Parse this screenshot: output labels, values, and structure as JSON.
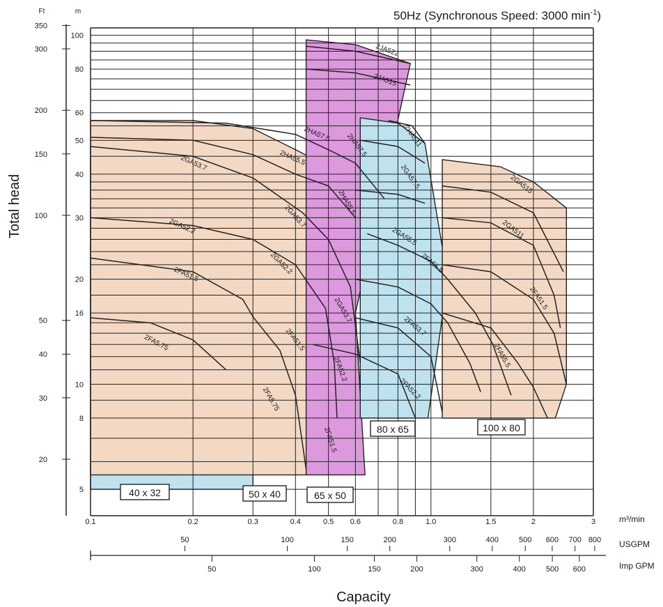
{
  "chart_data": {
    "type": "area",
    "title": "50Hz (Synchronous Speed: 3000 min",
    "title_sup": "-1",
    "title_end": ")",
    "ylabel": "Total head",
    "xlabel": "Capacity",
    "x_unit": "m³/min",
    "usgpm_label": "USGPM",
    "impgpm_label": "Imp GPM",
    "ft_label": "Ft",
    "m_label": "m",
    "x_scale": "log",
    "y_scale": "log",
    "xlim": [
      0.1,
      3
    ],
    "ylim_m": [
      4.2,
      105
    ],
    "grid": true,
    "x_ticks": [
      {
        "v": 0.1,
        "label": "0.1"
      },
      {
        "v": 0.2,
        "label": "0.2"
      },
      {
        "v": 0.3,
        "label": "0.3"
      },
      {
        "v": 0.4,
        "label": "0.4"
      },
      {
        "v": 0.5,
        "label": "0.5"
      },
      {
        "v": 0.6,
        "label": "0.6"
      },
      {
        "v": 0.8,
        "label": "0.8"
      },
      {
        "v": 1.0,
        "label": "1.0"
      },
      {
        "v": 1.5,
        "label": "1.5"
      },
      {
        "v": 2,
        "label": "2"
      },
      {
        "v": 3,
        "label": "3"
      }
    ],
    "x_minor": [
      0.7,
      0.9
    ],
    "m_ticks": [
      {
        "v": 5,
        "label": "5"
      },
      {
        "v": 8,
        "label": "8"
      },
      {
        "v": 10,
        "label": "10"
      },
      {
        "v": 16,
        "label": "16"
      },
      {
        "v": 20,
        "label": "20"
      },
      {
        "v": 30,
        "label": "30"
      },
      {
        "v": 40,
        "label": "40"
      },
      {
        "v": 50,
        "label": "50"
      },
      {
        "v": 60,
        "label": "60"
      },
      {
        "v": 80,
        "label": "80"
      },
      {
        "v": 100,
        "label": "100"
      }
    ],
    "m_minor": [
      6,
      7,
      9,
      11,
      12,
      13,
      14,
      15,
      18,
      22,
      24,
      26,
      28,
      32,
      34,
      36,
      38,
      45,
      55,
      65,
      70,
      75,
      85,
      90,
      95
    ],
    "ft_ticks": [
      {
        "v": 20,
        "label": "20"
      },
      {
        "v": 30,
        "label": "30"
      },
      {
        "v": 40,
        "label": "40"
      },
      {
        "v": 50,
        "label": "50"
      },
      {
        "v": 100,
        "label": "100"
      },
      {
        "v": 150,
        "label": "150"
      },
      {
        "v": 200,
        "label": "200"
      },
      {
        "v": 300,
        "label": "300"
      },
      {
        "v": 350,
        "label": "350"
      }
    ],
    "usgpm_ticks": [
      {
        "v": 50,
        "label": "50"
      },
      {
        "v": 100,
        "label": "100"
      },
      {
        "v": 150,
        "label": "150"
      },
      {
        "v": 200,
        "label": "200"
      },
      {
        "v": 300,
        "label": "300"
      },
      {
        "v": 400,
        "label": "400"
      },
      {
        "v": 500,
        "label": "500"
      },
      {
        "v": 600,
        "label": "600"
      },
      {
        "v": 700,
        "label": "700"
      },
      {
        "v": 800,
        "label": "800"
      }
    ],
    "impgpm_ticks": [
      {
        "v": 50,
        "label": "50"
      },
      {
        "v": 100,
        "label": "100"
      },
      {
        "v": 150,
        "label": "150"
      },
      {
        "v": 200,
        "label": "200"
      },
      {
        "v": 300,
        "label": "300"
      },
      {
        "v": 400,
        "label": "400"
      },
      {
        "v": 500,
        "label": "500"
      },
      {
        "v": 600,
        "label": "600"
      }
    ],
    "colors": {
      "blue": "#bfe3ee",
      "tan": "#f3d9c4",
      "pink": "#dd99dd"
    },
    "regions": [
      {
        "size": "40 x 32",
        "color": "blue",
        "upper": [
          [
            0.1,
            48
          ],
          [
            0.2,
            45
          ],
          [
            0.26,
            41
          ]
        ],
        "right": [
          [
            0.26,
            41
          ],
          [
            0.255,
            11
          ],
          [
            0.3,
            6.9
          ]
        ],
        "lower": [
          [
            0.1,
            5
          ]
        ]
      },
      {
        "size": "50 x 40",
        "color": "tan",
        "upper": [
          [
            0.1,
            57
          ],
          [
            0.2,
            57
          ],
          [
            0.3,
            54
          ],
          [
            0.4,
            47
          ],
          [
            0.5,
            42
          ]
        ],
        "right": [
          [
            0.5,
            42
          ],
          [
            0.44,
            13
          ],
          [
            0.43,
            5.5
          ]
        ],
        "lower": [
          [
            0.26,
            5.5
          ]
        ]
      },
      {
        "size": "65 x 50",
        "color": "pink",
        "upper": [
          [
            0.43,
            97
          ],
          [
            0.6,
            94
          ],
          [
            0.87,
            83
          ]
        ],
        "right": [
          [
            0.87,
            83
          ],
          [
            0.6,
            16
          ],
          [
            0.64,
            5.5
          ]
        ],
        "lower": [
          [
            0.43,
            5.5
          ]
        ]
      },
      {
        "size": "80 x 65",
        "color": "blue",
        "upper": [
          [
            0.62,
            58
          ],
          [
            0.8,
            56
          ],
          [
            0.96,
            49
          ]
        ],
        "right": [
          [
            0.96,
            49
          ],
          [
            1.12,
            20
          ],
          [
            0.98,
            8
          ]
        ],
        "lower": [
          [
            0.72,
            8
          ]
        ]
      },
      {
        "size": "100 x 80",
        "color": "tan",
        "upper": [
          [
            1.08,
            44
          ],
          [
            1.6,
            42
          ],
          [
            2.0,
            38
          ],
          [
            2.5,
            32
          ]
        ],
        "right": [
          [
            2.5,
            32
          ],
          [
            2.5,
            10
          ],
          [
            2.32,
            8
          ]
        ],
        "lower": [
          [
            1.22,
            8
          ]
        ]
      }
    ],
    "size_boxes": [
      "40 x 32",
      "50 x 40",
      "65 x 50",
      "80 x 65",
      "100 x 80"
    ],
    "series": [
      {
        "name": "2FA5.75",
        "points": [
          [
            0.1,
            15.5
          ],
          [
            0.15,
            15
          ],
          [
            0.2,
            13.4
          ],
          [
            0.25,
            11
          ]
        ]
      },
      {
        "name": "2FA51.5",
        "points": [
          [
            0.1,
            23
          ],
          [
            0.2,
            21
          ],
          [
            0.28,
            17.5
          ],
          [
            0.3,
            15.6
          ],
          [
            0.36,
            12.5
          ],
          [
            0.4,
            9.3
          ],
          [
            0.43,
            5.7
          ]
        ]
      },
      {
        "name": "2GA52.2",
        "points": [
          [
            0.1,
            30
          ],
          [
            0.2,
            28.5
          ],
          [
            0.3,
            26
          ],
          [
            0.4,
            22
          ],
          [
            0.49,
            16.5
          ],
          [
            0.52,
            11.5
          ],
          [
            0.53,
            8
          ]
        ]
      },
      {
        "name": "2GA53.7",
        "points": [
          [
            0.1,
            48
          ],
          [
            0.2,
            45
          ],
          [
            0.3,
            39
          ],
          [
            0.42,
            31
          ],
          [
            0.5,
            26
          ],
          [
            0.58,
            19
          ],
          [
            0.62,
            11.5
          ]
        ]
      },
      {
        "name": "2HA55.5",
        "points": [
          [
            0.1,
            51
          ],
          [
            0.2,
            50
          ],
          [
            0.3,
            45.5
          ],
          [
            0.4,
            40
          ],
          [
            0.5,
            37
          ],
          [
            0.6,
            30
          ]
        ]
      },
      {
        "name": "2HA57.5",
        "points": [
          [
            0.1,
            57
          ],
          [
            0.25,
            56
          ],
          [
            0.4,
            52
          ],
          [
            0.5,
            47
          ],
          [
            0.6,
            43
          ],
          [
            0.73,
            34
          ]
        ]
      },
      {
        "name": "2JA515",
        "points": [
          [
            0.43,
            80
          ],
          [
            0.6,
            78
          ],
          [
            0.87,
            72
          ]
        ]
      },
      {
        "name": "2JA522",
        "points": [
          [
            0.43,
            93
          ],
          [
            0.6,
            90
          ],
          [
            0.87,
            83
          ]
        ]
      },
      {
        "name": "2FA51.5",
        "points": [
          [
            0.45,
            13
          ],
          [
            0.6,
            12.2
          ],
          [
            0.8,
            10.7
          ],
          [
            0.9,
            8
          ]
        ]
      },
      {
        "name": "2FA52.2",
        "points": [
          [
            0.6,
            15.5
          ],
          [
            0.8,
            14.5
          ],
          [
            1.0,
            12
          ],
          [
            1.08,
            8.3
          ]
        ]
      },
      {
        "name": "2FA53.7",
        "points": [
          [
            0.6,
            20
          ],
          [
            0.8,
            19
          ],
          [
            1.0,
            17
          ],
          [
            1.12,
            15
          ],
          [
            1.3,
            11.5
          ],
          [
            1.4,
            9.5
          ]
        ]
      },
      {
        "name": "2FA55.5",
        "points": [
          [
            0.65,
            27
          ],
          [
            0.8,
            25
          ],
          [
            1.0,
            22.5
          ],
          [
            1.12,
            20
          ],
          [
            1.35,
            16
          ],
          [
            1.52,
            13
          ],
          [
            1.72,
            9.3
          ]
        ]
      },
      {
        "name": "2GA55.5",
        "points": [
          [
            0.6,
            36
          ],
          [
            0.8,
            35
          ],
          [
            0.96,
            33
          ]
        ]
      },
      {
        "name": "2GA57.5",
        "points": [
          [
            0.62,
            50
          ],
          [
            0.8,
            48
          ],
          [
            0.96,
            43
          ]
        ]
      },
      {
        "name": "2HA511",
        "points": [
          [
            0.75,
            57
          ],
          [
            0.88,
            55
          ],
          [
            0.96,
            49
          ]
        ]
      },
      {
        "name": "2GA515",
        "points": [
          [
            1.08,
            37
          ],
          [
            1.5,
            35.5
          ],
          [
            2.0,
            31
          ],
          [
            2.45,
            21
          ]
        ]
      },
      {
        "name": "2GA511",
        "points": [
          [
            1.08,
            30
          ],
          [
            1.5,
            29
          ],
          [
            2.0,
            25
          ],
          [
            2.3,
            18
          ],
          [
            2.4,
            14.5
          ]
        ]
      },
      {
        "name": "2FA51.5",
        "points": [
          [
            1.08,
            22
          ],
          [
            1.5,
            21
          ],
          [
            2.0,
            17.5
          ],
          [
            2.3,
            14
          ],
          [
            2.5,
            10
          ]
        ]
      },
      {
        "name": "2FA55.5",
        "points": [
          [
            1.08,
            16
          ],
          [
            1.5,
            14.5
          ],
          [
            1.8,
            11.5
          ],
          [
            2.0,
            9.8
          ],
          [
            2.2,
            8
          ]
        ]
      }
    ],
    "curve_labels": [
      {
        "text": "2FA5.75",
        "q": 0.155,
        "h": 13.0,
        "rot": 28
      },
      {
        "text": "2FA51.5",
        "q": 0.19,
        "h": 20.4,
        "rot": 24
      },
      {
        "text": "2GA52.2",
        "q": 0.185,
        "h": 28.0,
        "rot": 24
      },
      {
        "text": "2GA53.7",
        "q": 0.2,
        "h": 42.5,
        "rot": 24
      },
      {
        "text": "2HA55.5",
        "q": 0.39,
        "h": 44.0,
        "rot": 24
      },
      {
        "text": "2HA57.5",
        "q": 0.46,
        "h": 51.5,
        "rot": 24
      },
      {
        "text": "2JA522",
        "q": 0.74,
        "h": 89.5,
        "rot": 20
      },
      {
        "text": "2JA515",
        "q": 0.73,
        "h": 73.5,
        "rot": 20
      },
      {
        "text": "2GA53.7",
        "q": 0.395,
        "h": 30.0,
        "rot": 48
      },
      {
        "text": "2GA52.2",
        "q": 0.36,
        "h": 22.0,
        "rot": 45
      },
      {
        "text": "2FA51.5",
        "q": 0.395,
        "h": 13.3,
        "rot": 52
      },
      {
        "text": "2FA5.75",
        "q": 0.335,
        "h": 9.0,
        "rot": 60
      },
      {
        "text": "2HA57.5",
        "q": 0.6,
        "h": 48.0,
        "rot": 52
      },
      {
        "text": "2HA55.5",
        "q": 0.56,
        "h": 33.0,
        "rot": 60
      },
      {
        "text": "2GA53.7",
        "q": 0.545,
        "h": 16.2,
        "rot": 60
      },
      {
        "text": "2FA52.2",
        "q": 0.535,
        "h": 11.0,
        "rot": 70
      },
      {
        "text": "2FA51.5",
        "q": 0.5,
        "h": 6.9,
        "rot": 72
      },
      {
        "text": "2HA511",
        "q": 0.875,
        "h": 51.0,
        "rot": 55
      },
      {
        "text": "2GA57.5",
        "q": 0.86,
        "h": 39.0,
        "rot": 55
      },
      {
        "text": "2GA55.5",
        "q": 0.83,
        "h": 26.2,
        "rot": 32
      },
      {
        "text": "2FA55.5",
        "q": 1.0,
        "h": 22.0,
        "rot": 40
      },
      {
        "text": "2FA53.7",
        "q": 0.89,
        "h": 14.5,
        "rot": 40
      },
      {
        "text": "2FA52.2",
        "q": 0.86,
        "h": 9.6,
        "rot": 45
      },
      {
        "text": "2GA515",
        "q": 1.83,
        "h": 37.0,
        "rot": 38
      },
      {
        "text": "2GA511",
        "q": 1.73,
        "h": 27.5,
        "rot": 38
      },
      {
        "text": "2FA51.5",
        "q": 2.05,
        "h": 17.5,
        "rot": 55
      },
      {
        "text": "2FA55.5",
        "q": 1.6,
        "h": 12.0,
        "rot": 60
      }
    ]
  }
}
